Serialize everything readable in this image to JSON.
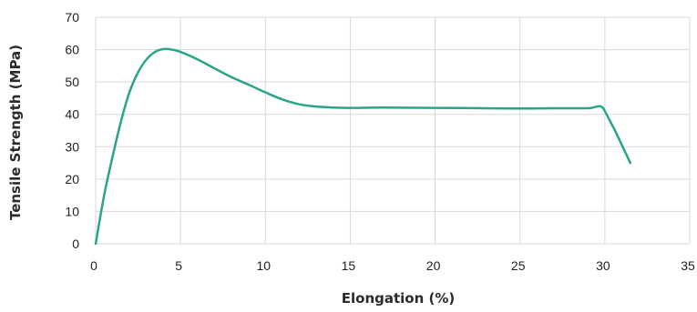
{
  "chart_data": {
    "type": "line",
    "title": "",
    "xlabel": "Elongation (%)",
    "ylabel": "Tensile Strength (MPa)",
    "xlim": [
      0,
      35
    ],
    "ylim": [
      0,
      70
    ],
    "x_ticks": [
      0,
      5,
      10,
      15,
      20,
      25,
      30,
      35
    ],
    "y_ticks": [
      0,
      10,
      20,
      30,
      40,
      50,
      60,
      70
    ],
    "x_tick_labels": [
      "0",
      "5",
      "10",
      "15",
      "20",
      "25",
      "30",
      "35"
    ],
    "y_tick_labels": [
      "0",
      "10",
      "20",
      "30",
      "40",
      "50",
      "60",
      "70"
    ],
    "grid": true,
    "legend": "none",
    "series": [
      {
        "color": "#2aa58a",
        "points": [
          [
            0,
            0
          ],
          [
            0.5,
            15
          ],
          [
            1,
            27
          ],
          [
            1.5,
            38
          ],
          [
            2,
            47
          ],
          [
            2.5,
            53
          ],
          [
            3,
            57
          ],
          [
            3.5,
            59.3
          ],
          [
            4,
            60.2
          ],
          [
            4.5,
            60
          ],
          [
            5,
            59.3
          ],
          [
            6,
            57
          ],
          [
            7,
            54.2
          ],
          [
            8,
            51.5
          ],
          [
            9,
            49.2
          ],
          [
            10,
            46.8
          ],
          [
            11,
            44.6
          ],
          [
            12,
            43.1
          ],
          [
            13,
            42.4
          ],
          [
            14,
            42.1
          ],
          [
            15,
            42
          ],
          [
            17,
            42.1
          ],
          [
            20,
            42
          ],
          [
            23,
            41.9
          ],
          [
            25,
            41.8
          ],
          [
            27,
            41.9
          ],
          [
            29,
            41.9
          ],
          [
            29.9,
            42
          ],
          [
            30.6,
            35
          ],
          [
            31.5,
            25
          ]
        ]
      }
    ]
  }
}
